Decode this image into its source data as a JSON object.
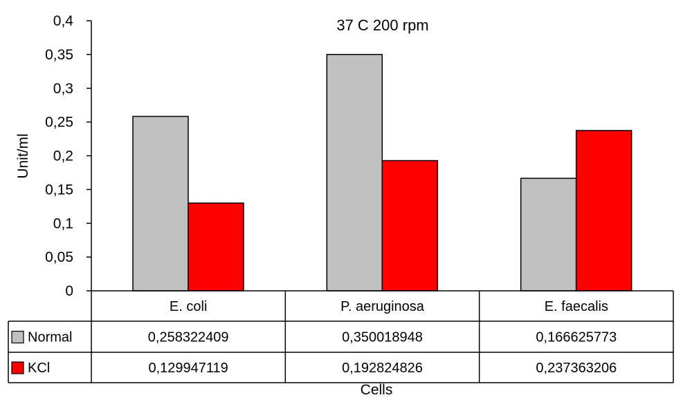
{
  "chart_data": {
    "type": "bar",
    "title": "37 C 200 rpm",
    "xlabel": "Cells",
    "ylabel": "Unit/ml",
    "ylim": [
      0,
      0.4
    ],
    "yticks": [
      0,
      0.05,
      0.1,
      0.15,
      0.2,
      0.25,
      0.3,
      0.35,
      0.4
    ],
    "ytick_labels": [
      "0",
      "0,05",
      "0,1",
      "0,15",
      "0,2",
      "0,25",
      "0,3",
      "0,35",
      "0,4"
    ],
    "categories": [
      "E. coli",
      "P. aeruginosa",
      "E. faecalis"
    ],
    "series": [
      {
        "name": "Normal",
        "color": "#c0c0c0",
        "values": [
          0.258322409,
          0.350018948,
          0.166625773
        ],
        "labels": [
          "0,258322409",
          "0,350018948",
          "0,166625773"
        ]
      },
      {
        "name": "KCl",
        "color": "#ff0000",
        "values": [
          0.129947119,
          0.192824826,
          0.237363206
        ],
        "labels": [
          "0,129947119",
          "0,192824826",
          "0,237363206"
        ]
      }
    ],
    "grid": false,
    "legend": "data-table-left"
  }
}
